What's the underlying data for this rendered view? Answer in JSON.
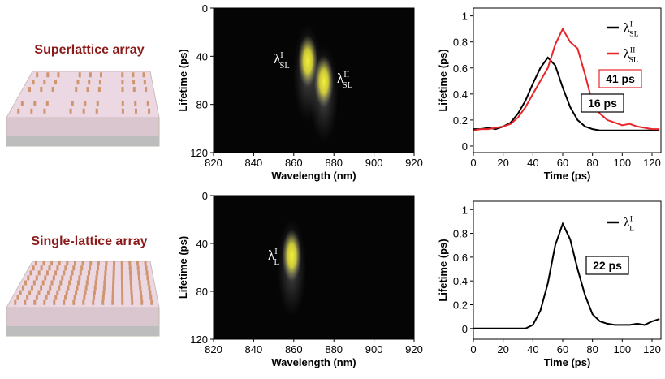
{
  "row_labels": [
    "Superlattice array",
    "Single-lattice array"
  ],
  "chart_data": [
    {
      "type": "streak",
      "x_label": "Wavelength (nm)",
      "y_label": "Lifetime (ps)",
      "xlim": [
        820,
        920
      ],
      "xticks": [
        820,
        840,
        860,
        880,
        900,
        920
      ],
      "ylim": [
        120,
        0
      ],
      "yticks": [
        0,
        40,
        80,
        120
      ],
      "color": "#f4f03a",
      "spots": [
        {
          "label": {
            "symbol": "λ",
            "sub": "SL",
            "sup": "I"
          },
          "x": 867,
          "y": 44
        },
        {
          "label": {
            "symbol": "λ",
            "sub": "SL",
            "sup": "II"
          },
          "x": 875,
          "y": 61
        }
      ]
    },
    {
      "type": "line",
      "x_label": "Time (ps)",
      "y_label": "Lifetime (ps)",
      "xlim": [
        0,
        126
      ],
      "xticks": [
        0,
        20,
        40,
        60,
        80,
        100,
        120
      ],
      "ylim": [
        -0.05,
        1.06
      ],
      "yticks": [
        0,
        0.2,
        0.4,
        0.6,
        0.8,
        1
      ],
      "x": [
        0,
        5,
        10,
        15,
        20,
        25,
        30,
        35,
        40,
        45,
        50,
        55,
        60,
        65,
        70,
        75,
        80,
        85,
        90,
        95,
        100,
        105,
        110,
        115,
        120,
        125
      ],
      "series": [
        {
          "name": {
            "symbol": "λ",
            "sub": "SL",
            "sup": "I"
          },
          "color": "#000000",
          "values": [
            0.13,
            0.13,
            0.14,
            0.13,
            0.15,
            0.18,
            0.25,
            0.35,
            0.48,
            0.6,
            0.68,
            0.62,
            0.45,
            0.3,
            0.2,
            0.15,
            0.13,
            0.12,
            0.12,
            0.12,
            0.12,
            0.12,
            0.12,
            0.12,
            0.12,
            0.12
          ]
        },
        {
          "name": {
            "symbol": "λ",
            "sub": "SL",
            "sup": "II"
          },
          "color": "#e8262a",
          "values": [
            0.12,
            0.13,
            0.13,
            0.14,
            0.15,
            0.17,
            0.22,
            0.3,
            0.4,
            0.5,
            0.6,
            0.78,
            0.9,
            0.8,
            0.75,
            0.55,
            0.33,
            0.25,
            0.2,
            0.18,
            0.16,
            0.17,
            0.15,
            0.14,
            0.13,
            0.13
          ]
        }
      ],
      "annotations": [
        {
          "text": "41 ps",
          "border": "#e8262a"
        },
        {
          "text": "16 ps",
          "border": "#000000"
        }
      ]
    },
    {
      "type": "streak",
      "x_label": "Wavelength (nm)",
      "y_label": "Lifetime (ps)",
      "xlim": [
        820,
        920
      ],
      "xticks": [
        820,
        840,
        860,
        880,
        900,
        920
      ],
      "ylim": [
        120,
        0
      ],
      "yticks": [
        0,
        40,
        80,
        120
      ],
      "color": "#f4f03a",
      "spots": [
        {
          "label": {
            "symbol": "λ",
            "sub": "L",
            "sup": "I"
          },
          "x": 859,
          "y": 50
        }
      ]
    },
    {
      "type": "line",
      "x_label": "Time (ps)",
      "y_label": "Lifetime (ps)",
      "xlim": [
        0,
        126
      ],
      "xticks": [
        0,
        20,
        40,
        60,
        80,
        100,
        120
      ],
      "ylim": [
        -0.09,
        1.07
      ],
      "yticks": [
        0,
        0.2,
        0.4,
        0.6,
        0.8,
        1
      ],
      "x": [
        0,
        5,
        10,
        15,
        20,
        25,
        30,
        35,
        40,
        45,
        50,
        55,
        60,
        65,
        70,
        75,
        80,
        85,
        90,
        95,
        100,
        105,
        110,
        115,
        120,
        125
      ],
      "series": [
        {
          "name": {
            "symbol": "λ",
            "sub": "L",
            "sup": "I"
          },
          "color": "#000000",
          "values": [
            0,
            0,
            0,
            0,
            0,
            0,
            0,
            0,
            0.03,
            0.15,
            0.38,
            0.7,
            0.88,
            0.75,
            0.5,
            0.28,
            0.12,
            0.06,
            0.04,
            0.03,
            0.03,
            0.03,
            0.04,
            0.03,
            0.06,
            0.08
          ]
        }
      ],
      "annotations": [
        {
          "text": "22 ps",
          "border": "#000000"
        }
      ]
    }
  ]
}
